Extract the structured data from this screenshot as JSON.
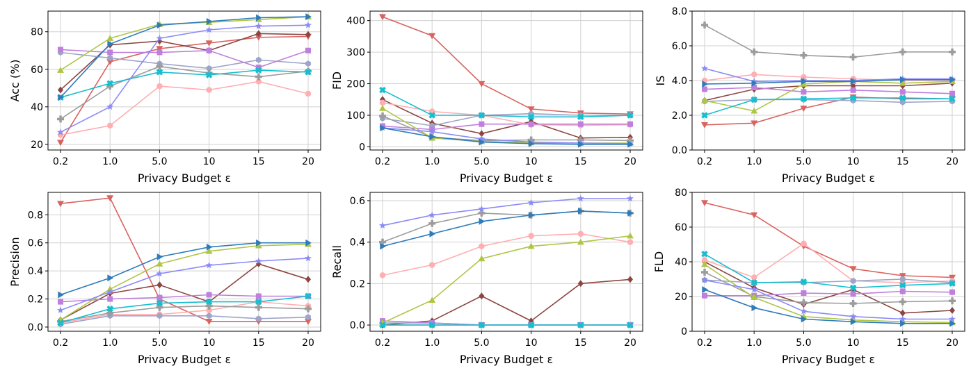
{
  "figure": {
    "x_categories": [
      "0.2",
      "1.0",
      "5.0",
      "10",
      "15",
      "20"
    ],
    "xlabel": "Privacy Budget ε",
    "method_styles": [
      {
        "color": "#d9635f",
        "marker": "triangle-down"
      },
      {
        "color": "#8c4541",
        "marker": "diamond"
      },
      {
        "color": "#ffaeb2",
        "marker": "circle"
      },
      {
        "color": "#9da5c9",
        "marker": "hexagon"
      },
      {
        "color": "#bf7fdc",
        "marker": "square"
      },
      {
        "color": "#9c9c9c",
        "marker": "plus"
      },
      {
        "color": "#afc645",
        "marker": "triangle-up"
      },
      {
        "color": "#17becf",
        "marker": "x-filled"
      },
      {
        "color": "#8b8bf7",
        "marker": "star"
      },
      {
        "color": "#2f7cbb",
        "marker": "triangle-right"
      }
    ]
  },
  "chart_data": [
    {
      "type": "line",
      "panel": "top-left",
      "ylabel": "Acc (%)",
      "xlabel": "Privacy Budget ε",
      "x": [
        "0.2",
        "1.0",
        "5.0",
        "10",
        "15",
        "20"
      ],
      "ylim": [
        17,
        91
      ],
      "yticks": [
        20,
        40,
        60,
        80
      ],
      "ytick_labels": [
        "20",
        "40",
        "60",
        "80"
      ],
      "grid": true,
      "series": [
        {
          "values": [
            21,
            64,
            71,
            74,
            77,
            77.5
          ]
        },
        {
          "values": [
            49,
            73,
            75,
            70,
            79,
            78.5
          ]
        },
        {
          "values": [
            25,
            30,
            51,
            49,
            53.5,
            47
          ]
        },
        {
          "values": [
            69,
            66,
            63,
            60.5,
            65,
            63
          ]
        },
        {
          "values": [
            70.5,
            69,
            69,
            70,
            61,
            70
          ]
        },
        {
          "values": [
            33.5,
            51,
            61.5,
            58,
            56,
            59
          ]
        },
        {
          "values": [
            59.5,
            76.5,
            84,
            85,
            86.5,
            88
          ]
        },
        {
          "values": [
            45,
            52.5,
            58.5,
            57,
            59.5,
            58.5
          ]
        },
        {
          "values": [
            26.5,
            40,
            76.5,
            81,
            83,
            83.5
          ]
        },
        {
          "values": [
            45,
            73.5,
            83.5,
            85.5,
            87.5,
            88
          ]
        }
      ]
    },
    {
      "type": "line",
      "panel": "top-middle",
      "ylabel": "FID",
      "xlabel": "Privacy Budget ε",
      "x": [
        "0.2",
        "1.0",
        "5.0",
        "10",
        "15",
        "20"
      ],
      "ylim": [
        -10,
        430
      ],
      "yticks": [
        0,
        100,
        200,
        300,
        400
      ],
      "ytick_labels": [
        "0",
        "100",
        "200",
        "300",
        "400"
      ],
      "grid": true,
      "series": [
        {
          "values": [
            412,
            352,
            200,
            120,
            107,
            104
          ]
        },
        {
          "values": [
            150,
            75,
            42,
            80,
            28,
            30
          ]
        },
        {
          "values": [
            140,
            112,
            100,
            70,
            68,
            70
          ]
        },
        {
          "values": [
            90,
            67,
            100,
            105,
            100,
            100
          ]
        },
        {
          "values": [
            66,
            55,
            72,
            72,
            72,
            72
          ]
        },
        {
          "values": [
            98,
            30,
            20,
            22,
            22,
            20
          ]
        },
        {
          "values": [
            122,
            28,
            17,
            13,
            12,
            12
          ]
        },
        {
          "values": [
            180,
            100,
            100,
            95,
            95,
            100
          ]
        },
        {
          "values": [
            60,
            48,
            25,
            15,
            12,
            10
          ]
        },
        {
          "values": [
            60,
            32,
            15,
            10,
            8,
            8
          ]
        }
      ]
    },
    {
      "type": "line",
      "panel": "top-right",
      "ylabel": "IS",
      "xlabel": "Privacy Budget ε",
      "x": [
        "0.2",
        "1.0",
        "5.0",
        "10",
        "15",
        "20"
      ],
      "ylim": [
        0,
        8
      ],
      "yticks": [
        0,
        2,
        4,
        6,
        8
      ],
      "ytick_labels": [
        "0.0",
        "2.0",
        "4.0",
        "6.0",
        "8.0"
      ],
      "grid": true,
      "series": [
        {
          "values": [
            1.45,
            1.55,
            2.4,
            3.05,
            2.95,
            2.95
          ]
        },
        {
          "values": [
            2.85,
            3.5,
            3.7,
            3.7,
            3.7,
            3.85
          ]
        },
        {
          "values": [
            4.0,
            4.35,
            4.2,
            4.1,
            4.0,
            4.0
          ]
        },
        {
          "values": [
            2.8,
            2.9,
            2.9,
            2.85,
            2.75,
            2.8
          ]
        },
        {
          "values": [
            3.5,
            3.6,
            3.35,
            3.45,
            3.35,
            3.25
          ]
        },
        {
          "values": [
            7.2,
            5.65,
            5.45,
            5.35,
            5.65,
            5.65
          ]
        },
        {
          "values": [
            2.85,
            2.25,
            3.8,
            3.95,
            3.85,
            3.95
          ]
        },
        {
          "values": [
            2.0,
            2.9,
            2.95,
            3.0,
            3.0,
            2.95
          ]
        },
        {
          "values": [
            4.7,
            3.95,
            4.0,
            4.0,
            4.1,
            4.1
          ]
        },
        {
          "values": [
            3.8,
            3.85,
            3.95,
            3.95,
            4.05,
            4.05
          ]
        }
      ]
    },
    {
      "type": "line",
      "panel": "bottom-left",
      "ylabel": "Precision",
      "xlabel": "Privacy Budget ε",
      "x": [
        "0.2",
        "1.0",
        "5.0",
        "10",
        "15",
        "20"
      ],
      "ylim": [
        -0.03,
        0.96
      ],
      "yticks": [
        0,
        0.2,
        0.4,
        0.6,
        0.8
      ],
      "ytick_labels": [
        "0.0",
        "0.2",
        "0.4",
        "0.6",
        "0.8"
      ],
      "grid": true,
      "series": [
        {
          "values": [
            0.88,
            0.92,
            0.2,
            0.04,
            0.04,
            0.04
          ]
        },
        {
          "values": [
            0.05,
            0.24,
            0.3,
            0.18,
            0.45,
            0.34
          ]
        },
        {
          "values": [
            0.03,
            0.09,
            0.09,
            0.12,
            0.18,
            0.15
          ]
        },
        {
          "values": [
            0.02,
            0.08,
            0.08,
            0.08,
            0.06,
            0.07
          ]
        },
        {
          "values": [
            0.18,
            0.2,
            0.21,
            0.23,
            0.22,
            0.22
          ]
        },
        {
          "values": [
            0.04,
            0.1,
            0.14,
            0.15,
            0.14,
            0.13
          ]
        },
        {
          "values": [
            0.05,
            0.27,
            0.45,
            0.54,
            0.58,
            0.59
          ]
        },
        {
          "values": [
            0.03,
            0.13,
            0.17,
            0.18,
            0.18,
            0.22
          ]
        },
        {
          "values": [
            0.12,
            0.25,
            0.38,
            0.44,
            0.47,
            0.49
          ]
        },
        {
          "values": [
            0.23,
            0.35,
            0.5,
            0.57,
            0.6,
            0.6
          ]
        }
      ]
    },
    {
      "type": "line",
      "panel": "bottom-middle",
      "ylabel": "Recall",
      "xlabel": "Privacy Budget ε",
      "x": [
        "0.2",
        "1.0",
        "5.0",
        "10",
        "15",
        "20"
      ],
      "ylim": [
        -0.03,
        0.64
      ],
      "yticks": [
        0,
        0.2,
        0.4,
        0.6
      ],
      "ytick_labels": [
        "0.0",
        "0.2",
        "0.4",
        "0.6"
      ],
      "grid": true,
      "series": [
        {
          "values": [
            0.0,
            0.0,
            0.0,
            0.0,
            0.0,
            0.0
          ]
        },
        {
          "values": [
            0.0,
            0.02,
            0.14,
            0.02,
            0.2,
            0.22
          ]
        },
        {
          "values": [
            0.24,
            0.29,
            0.38,
            0.43,
            0.44,
            0.4
          ]
        },
        {
          "values": [
            0.01,
            0.01,
            0.0,
            0.0,
            0.0,
            0.0
          ]
        },
        {
          "values": [
            0.02,
            0.01,
            0.0,
            0.0,
            0.0,
            0.0
          ]
        },
        {
          "values": [
            0.4,
            0.49,
            0.54,
            0.53,
            0.55,
            0.54
          ]
        },
        {
          "values": [
            0.01,
            0.12,
            0.32,
            0.38,
            0.4,
            0.43
          ]
        },
        {
          "values": [
            0.0,
            0.0,
            0.0,
            0.0,
            0.0,
            0.0
          ]
        },
        {
          "values": [
            0.48,
            0.53,
            0.56,
            0.59,
            0.61,
            0.61
          ]
        },
        {
          "values": [
            0.38,
            0.44,
            0.5,
            0.53,
            0.55,
            0.54
          ]
        }
      ]
    },
    {
      "type": "line",
      "panel": "bottom-right",
      "ylabel": "FLD",
      "xlabel": "Privacy Budget ε",
      "x": [
        "0.2",
        "1.0",
        "5.0",
        "10",
        "15",
        "20"
      ],
      "ylim": [
        0,
        80
      ],
      "yticks": [
        0,
        20,
        40,
        60,
        80
      ],
      "ytick_labels": [
        "0",
        "20",
        "40",
        "60",
        "80"
      ],
      "grid": true,
      "series": [
        {
          "values": [
            74,
            67,
            49,
            36,
            32,
            31
          ]
        },
        {
          "values": [
            40,
            25,
            15.5,
            24,
            10.5,
            12
          ]
        },
        {
          "values": [
            41,
            31,
            50.5,
            29,
            28,
            29
          ]
        },
        {
          "values": [
            29.5,
            28,
            28,
            29,
            30,
            28
          ]
        },
        {
          "values": [
            20.5,
            20.5,
            22,
            21.5,
            23,
            22.5
          ]
        },
        {
          "values": [
            34,
            20,
            16.5,
            16,
            17,
            17.5
          ]
        },
        {
          "values": [
            38.5,
            19.5,
            8.5,
            6.5,
            5.5,
            5
          ]
        },
        {
          "values": [
            44.5,
            28,
            28.5,
            25,
            26.5,
            27.5
          ]
        },
        {
          "values": [
            29.5,
            24,
            11.5,
            8.5,
            7,
            7
          ]
        },
        {
          "values": [
            24,
            13.5,
            7,
            5.5,
            4.5,
            4.5
          ]
        }
      ]
    }
  ]
}
